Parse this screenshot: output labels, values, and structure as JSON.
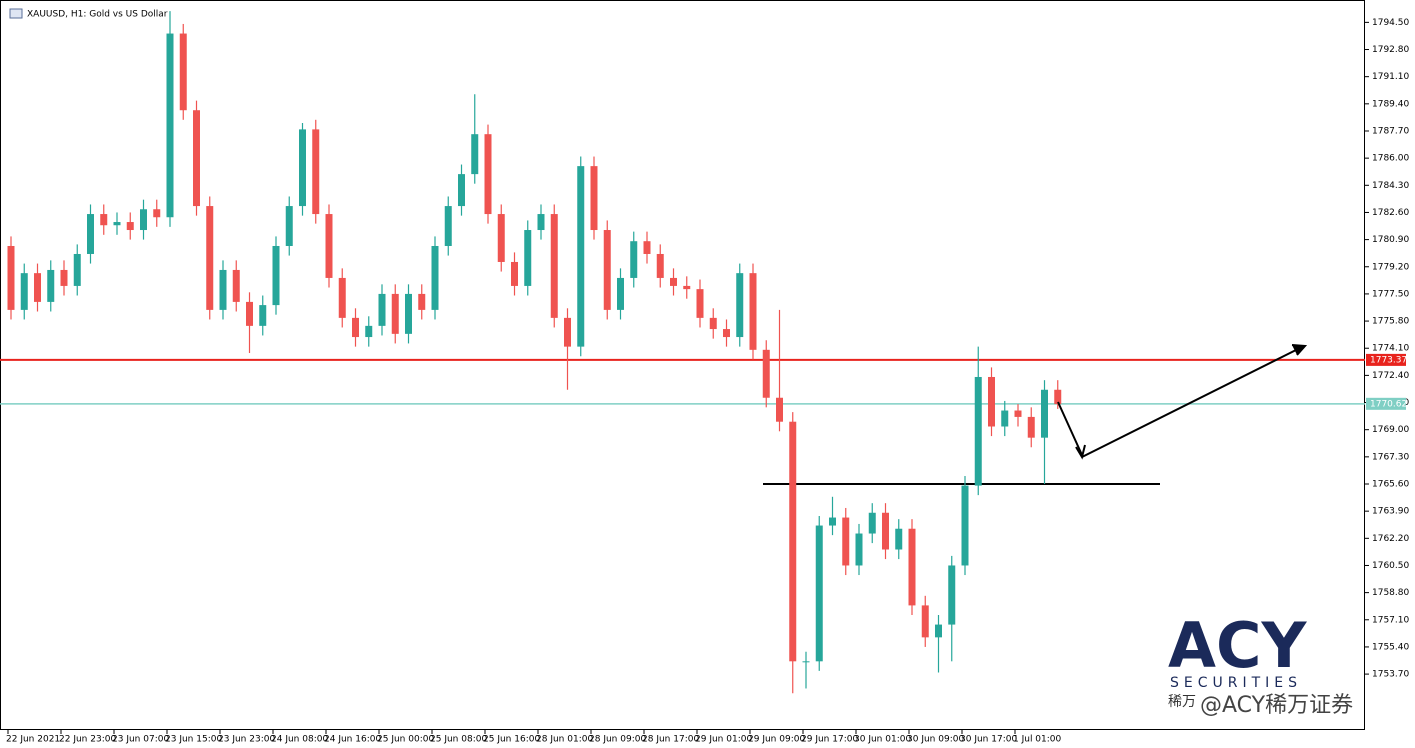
{
  "chart_data": {
    "type": "candlestick",
    "title": "XAUUSD, H1:  Gold vs US Dollar",
    "x_labels": [
      "22 Jun 2021",
      "22 Jun 23:00",
      "23 Jun 07:00",
      "23 Jun 15:00",
      "23 Jun 23:00",
      "24 Jun 08:00",
      "24 Jun 16:00",
      "25 Jun 00:00",
      "25 Jun 08:00",
      "25 Jun 16:00",
      "28 Jun 01:00",
      "28 Jun 09:00",
      "28 Jun 17:00",
      "29 Jun 01:00",
      "29 Jun 09:00",
      "29 Jun 17:00",
      "30 Jun 01:00",
      "30 Jun 09:00",
      "30 Jun 17:00",
      "1 Jul 01:00"
    ],
    "up_color": "#26a69a",
    "down_color": "#ef5350",
    "ylim": [
      1750.2,
      1795.9
    ],
    "yticks": [
      {
        "value": 1794.5,
        "label": "1794.50"
      },
      {
        "value": 1792.8,
        "label": "1792.80"
      },
      {
        "value": 1791.1,
        "label": "1791.10"
      },
      {
        "value": 1789.4,
        "label": "1789.40"
      },
      {
        "value": 1787.7,
        "label": "1787.70"
      },
      {
        "value": 1786,
        "label": "1786.00"
      },
      {
        "value": 1784.3,
        "label": "1784.30"
      },
      {
        "value": 1782.6,
        "label": "1782.60"
      },
      {
        "value": 1780.9,
        "label": "1780.90"
      },
      {
        "value": 1779.2,
        "label": "1779.20"
      },
      {
        "value": 1777.5,
        "label": "1777.50"
      },
      {
        "value": 1775.8,
        "label": "1775.80"
      },
      {
        "value": 1774.1,
        "label": "1774.10"
      },
      {
        "value": 1772.4,
        "label": "1772.40"
      },
      {
        "value": 1770.7,
        "label": "1770.70"
      },
      {
        "value": 1769,
        "label": "1769.00"
      },
      {
        "value": 1767.3,
        "label": "1767.30"
      },
      {
        "value": 1765.6,
        "label": "1765.60"
      },
      {
        "value": 1763.9,
        "label": "1763.90"
      },
      {
        "value": 1762.2,
        "label": "1762.20"
      },
      {
        "value": 1760.5,
        "label": "1760.50"
      },
      {
        "value": 1758.8,
        "label": "1758.80"
      },
      {
        "value": 1757.1,
        "label": "1757.10"
      },
      {
        "value": 1755.4,
        "label": "1755.40"
      },
      {
        "value": 1753.7,
        "label": "1753.70"
      }
    ],
    "price_lines": [
      {
        "value": 1773.37,
        "label": "1773.37",
        "color": "#e8231d"
      },
      {
        "value": 1770.62,
        "label": "1770.62",
        "color": "#7fcfc4"
      }
    ],
    "support_line": 1765.6,
    "watermark": {
      "brand": "ACY",
      "sub": "SECURITIES",
      "cn": "稀万",
      "handle": "@ACY稀万证券"
    },
    "ohlc": [
      [
        1780.5,
        1781.1,
        1775.9,
        1776.5
      ],
      [
        1776.5,
        1779.4,
        1775.9,
        1778.8
      ],
      [
        1778.8,
        1779.4,
        1776.4,
        1777.0
      ],
      [
        1777.0,
        1779.6,
        1776.4,
        1779.0
      ],
      [
        1779.0,
        1779.6,
        1777.4,
        1778.0
      ],
      [
        1778.0,
        1780.6,
        1777.4,
        1780.0
      ],
      [
        1780.0,
        1783.1,
        1779.4,
        1782.5
      ],
      [
        1782.5,
        1783.1,
        1781.2,
        1781.8
      ],
      [
        1781.8,
        1782.6,
        1781.2,
        1782.0
      ],
      [
        1782.0,
        1782.6,
        1780.9,
        1781.5
      ],
      [
        1781.5,
        1783.4,
        1780.9,
        1782.8
      ],
      [
        1782.8,
        1783.4,
        1781.7,
        1782.3
      ],
      [
        1782.3,
        1795.2,
        1781.7,
        1793.8
      ],
      [
        1793.8,
        1794.4,
        1788.4,
        1789.0
      ],
      [
        1789.0,
        1789.6,
        1782.4,
        1783.0
      ],
      [
        1783.0,
        1783.6,
        1775.9,
        1776.5
      ],
      [
        1776.5,
        1779.6,
        1775.9,
        1779.0
      ],
      [
        1779.0,
        1779.6,
        1776.4,
        1777.0
      ],
      [
        1777.0,
        1777.6,
        1773.8,
        1775.5
      ],
      [
        1775.5,
        1777.4,
        1774.9,
        1776.8
      ],
      [
        1776.8,
        1781.1,
        1776.2,
        1780.5
      ],
      [
        1780.5,
        1783.6,
        1779.9,
        1783.0
      ],
      [
        1783.0,
        1788.2,
        1782.4,
        1787.8
      ],
      [
        1787.8,
        1788.4,
        1781.9,
        1782.5
      ],
      [
        1782.5,
        1783.1,
        1777.9,
        1778.5
      ],
      [
        1778.5,
        1779.1,
        1775.4,
        1776.0
      ],
      [
        1776.0,
        1776.6,
        1774.2,
        1774.8
      ],
      [
        1774.8,
        1776.1,
        1774.2,
        1775.5
      ],
      [
        1775.5,
        1778.1,
        1774.9,
        1777.5
      ],
      [
        1777.5,
        1778.1,
        1774.4,
        1775.0
      ],
      [
        1775.0,
        1778.1,
        1774.4,
        1777.5
      ],
      [
        1777.5,
        1778.1,
        1775.9,
        1776.5
      ],
      [
        1776.5,
        1781.1,
        1775.9,
        1780.5
      ],
      [
        1780.5,
        1783.6,
        1779.9,
        1783.0
      ],
      [
        1783.0,
        1785.6,
        1782.4,
        1785.0
      ],
      [
        1785.0,
        1790.0,
        1784.4,
        1787.5
      ],
      [
        1787.5,
        1788.1,
        1781.9,
        1782.5
      ],
      [
        1782.5,
        1783.1,
        1778.9,
        1779.5
      ],
      [
        1779.5,
        1780.1,
        1777.4,
        1778.0
      ],
      [
        1778.0,
        1782.1,
        1777.4,
        1781.5
      ],
      [
        1781.5,
        1783.1,
        1780.9,
        1782.5
      ],
      [
        1782.5,
        1783.1,
        1775.4,
        1776.0
      ],
      [
        1776.0,
        1776.6,
        1771.5,
        1774.2
      ],
      [
        1774.2,
        1786.1,
        1773.6,
        1785.5
      ],
      [
        1785.5,
        1786.1,
        1780.9,
        1781.5
      ],
      [
        1781.5,
        1782.1,
        1775.9,
        1776.5
      ],
      [
        1776.5,
        1779.1,
        1775.9,
        1778.5
      ],
      [
        1778.5,
        1781.4,
        1777.9,
        1780.8
      ],
      [
        1780.8,
        1781.4,
        1779.4,
        1780.0
      ],
      [
        1780.0,
        1780.6,
        1777.9,
        1778.5
      ],
      [
        1778.5,
        1779.1,
        1777.4,
        1778.0
      ],
      [
        1778.0,
        1778.6,
        1777.2,
        1777.8
      ],
      [
        1777.8,
        1778.4,
        1775.4,
        1776.0
      ],
      [
        1776.0,
        1776.6,
        1774.7,
        1775.3
      ],
      [
        1775.3,
        1775.9,
        1774.2,
        1774.8
      ],
      [
        1774.8,
        1779.4,
        1774.2,
        1778.8
      ],
      [
        1778.8,
        1779.4,
        1773.4,
        1774.0
      ],
      [
        1774.0,
        1774.6,
        1770.4,
        1771.0
      ],
      [
        1771.0,
        1776.5,
        1768.9,
        1769.5
      ],
      [
        1769.5,
        1770.1,
        1752.5,
        1754.5
      ],
      [
        1754.5,
        1755.1,
        1752.8,
        1754.5
      ],
      [
        1754.5,
        1763.6,
        1753.9,
        1763.0
      ],
      [
        1763.0,
        1764.8,
        1762.4,
        1763.5
      ],
      [
        1763.5,
        1764.1,
        1759.9,
        1760.5
      ],
      [
        1760.5,
        1763.1,
        1759.9,
        1762.5
      ],
      [
        1762.5,
        1764.4,
        1761.9,
        1763.8
      ],
      [
        1763.8,
        1764.4,
        1760.9,
        1761.5
      ],
      [
        1761.5,
        1763.4,
        1760.9,
        1762.8
      ],
      [
        1762.8,
        1763.4,
        1757.4,
        1758.0
      ],
      [
        1758.0,
        1758.6,
        1755.4,
        1756.0
      ],
      [
        1756.0,
        1757.4,
        1753.8,
        1756.8
      ],
      [
        1756.8,
        1761.1,
        1754.5,
        1760.5
      ],
      [
        1760.5,
        1766.1,
        1759.9,
        1765.5
      ],
      [
        1765.5,
        1774.2,
        1764.9,
        1772.3
      ],
      [
        1772.3,
        1772.9,
        1768.6,
        1769.2
      ],
      [
        1769.2,
        1770.8,
        1768.6,
        1770.2
      ],
      [
        1770.2,
        1770.6,
        1769.2,
        1769.8
      ],
      [
        1769.8,
        1770.4,
        1767.9,
        1768.5
      ],
      [
        1768.5,
        1772.1,
        1765.6,
        1771.5
      ],
      [
        1771.5,
        1772.1,
        1770.3,
        1770.6
      ]
    ]
  }
}
